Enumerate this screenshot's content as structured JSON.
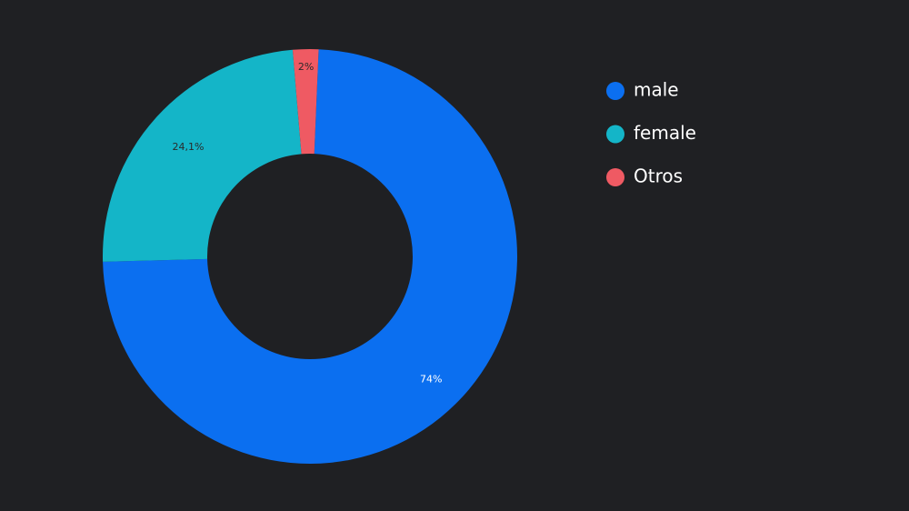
{
  "chart_data": {
    "type": "pie",
    "categories": [
      "male",
      "female",
      "Otros"
    ],
    "values": [
      74,
      24.1,
      2
    ],
    "value_labels": [
      "74%",
      "24,1%",
      "2%"
    ],
    "colors": [
      "#0b6ff0",
      "#14b5c8",
      "#ef5a63"
    ],
    "legend": "right"
  }
}
